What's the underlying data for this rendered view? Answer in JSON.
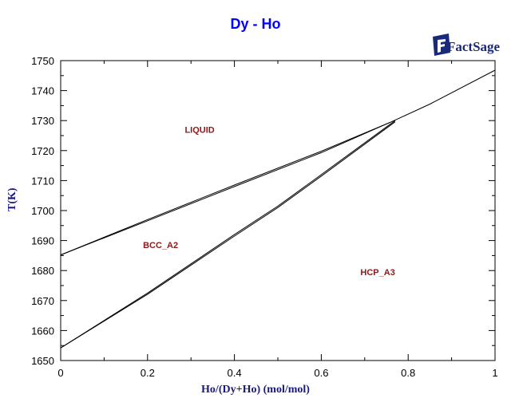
{
  "chart_data": {
    "type": "line",
    "title": "Dy - Ho",
    "xlabel": "Ho/(Dy+Ho) (mol/mol)",
    "ylabel": "T(K)",
    "xlim": [
      0,
      1
    ],
    "ylim": [
      1650,
      1750
    ],
    "x_ticks": [
      "0",
      "0.2",
      "0.4",
      "0.6",
      "0.8",
      "1"
    ],
    "y_ticks": [
      "1650",
      "1660",
      "1670",
      "1680",
      "1690",
      "1700",
      "1710",
      "1720",
      "1730",
      "1740",
      "1750"
    ],
    "grid": false,
    "legend": null,
    "series": [
      {
        "name": "LIQUID/BCC_A2 liquidus",
        "x": [
          0,
          0.2,
          0.4,
          0.6,
          0.76
        ],
        "y": [
          1685.2,
          1697,
          1708.5,
          1719.8,
          1729.5
        ]
      },
      {
        "name": "LIQUID/BCC_A2 solidus",
        "x": [
          0,
          0.2,
          0.4,
          0.6,
          0.76
        ],
        "y": [
          1685.2,
          1696.6,
          1708,
          1719.3,
          1729.5
        ]
      },
      {
        "name": "LIQUID+BCC boundary to HCP (high)",
        "x": [
          0.76,
          0.85,
          1.0
        ],
        "y": [
          1729.5,
          1735.5,
          1746.8
        ]
      },
      {
        "name": "BCC_A2/HCP_A3 upper",
        "x": [
          0,
          0.2,
          0.4,
          0.5,
          0.6,
          0.77
        ],
        "y": [
          1654.2,
          1672.5,
          1692,
          1701.5,
          1712,
          1730
        ]
      },
      {
        "name": "BCC_A2/HCP_A3 lower",
        "x": [
          0,
          0.2,
          0.4,
          0.5,
          0.6,
          0.77
        ],
        "y": [
          1654.2,
          1672.1,
          1691.5,
          1701,
          1711.5,
          1729.6
        ]
      }
    ],
    "annotations": [
      {
        "text": "LIQUID",
        "x": 0.32,
        "y": 1727
      },
      {
        "text": "BCC_A2",
        "x": 0.23,
        "y": 1688.5
      },
      {
        "text": "HCP_A3",
        "x": 0.73,
        "y": 1679.5
      }
    ]
  },
  "header": {
    "title": "Dy - Ho",
    "logo_text": "FactSage"
  },
  "axes": {
    "xlabel": "Ho/(Dy+Ho) (mol/mol)",
    "ylabel": "T(K)"
  },
  "labels": {
    "liquid": "LIQUID",
    "bcc": "BCC_A2",
    "hcp": "HCP_A3"
  },
  "colors": {
    "title": "#0000ff",
    "axis_label": "#1a1a80",
    "phase_label": "#8b1a1a",
    "lines": "#000000"
  }
}
